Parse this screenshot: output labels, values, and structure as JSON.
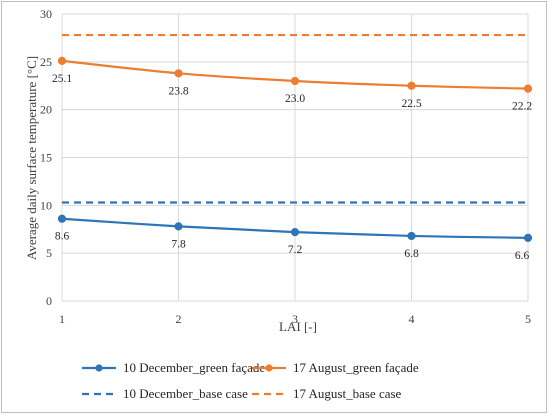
{
  "chart_data": {
    "type": "line",
    "xlabel": "LAI [-]",
    "ylabel": "Average daily surface temperature [°C]",
    "x": [
      1,
      2,
      3,
      4,
      5
    ],
    "xlim": [
      1,
      5
    ],
    "ylim": [
      0,
      30
    ],
    "yticks": [
      0,
      5,
      10,
      15,
      20,
      25,
      30
    ],
    "grid": true,
    "legend_position": "bottom",
    "series": [
      {
        "name": "10 December_green façade",
        "values": [
          8.6,
          7.8,
          7.2,
          6.8,
          6.6
        ],
        "labels": [
          "8.6",
          "7.8",
          "7.2",
          "6.8",
          "6.6"
        ],
        "color": "#2e75b6",
        "style": "solid",
        "markers": true
      },
      {
        "name": "17 August_green façade",
        "values": [
          25.1,
          23.8,
          23.0,
          22.5,
          22.2
        ],
        "labels": [
          "25.1",
          "23.8",
          "23.0",
          "22.5",
          "22.2"
        ],
        "color": "#ed7d31",
        "style": "solid",
        "markers": true
      },
      {
        "name": "10 December_base case",
        "values": [
          10.3,
          10.3,
          10.3,
          10.3,
          10.3
        ],
        "color": "#2e75b6",
        "style": "dashed",
        "markers": false
      },
      {
        "name": "17 August_base case",
        "values": [
          27.8,
          27.8,
          27.8,
          27.8,
          27.8
        ],
        "color": "#ed7d31",
        "style": "dashed",
        "markers": false
      }
    ]
  }
}
